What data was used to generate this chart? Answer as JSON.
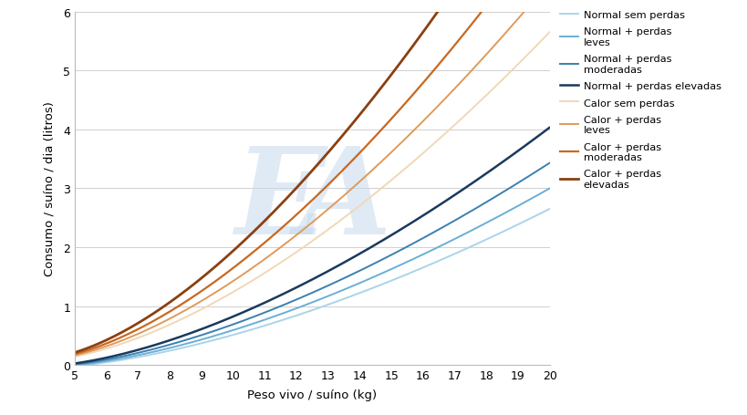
{
  "xlabel": "Peso vivo / suíno (kg)",
  "ylabel": "Consumo / suíno / dia (litros)",
  "xlim": [
    5,
    20
  ],
  "ylim": [
    0,
    6
  ],
  "xticks": [
    5,
    6,
    7,
    8,
    9,
    10,
    11,
    12,
    13,
    14,
    15,
    16,
    17,
    18,
    19,
    20
  ],
  "yticks": [
    0,
    1,
    2,
    3,
    4,
    5,
    6
  ],
  "series": [
    {
      "label": "Normal sem perdas",
      "color": "#aad4ea",
      "linewidth": 1.4,
      "a": 0.032,
      "b": 1.6,
      "c": -0.05
    },
    {
      "label": "Normal + perdas\nleves",
      "color": "#6bafd6",
      "linewidth": 1.4,
      "a": 0.036,
      "b": 1.6,
      "c": -0.04
    },
    {
      "label": "Normal + perdas\nmoderadas",
      "color": "#3b80b0",
      "linewidth": 1.4,
      "a": 0.041,
      "b": 1.6,
      "c": -0.03
    },
    {
      "label": "Normal + perdas elevadas",
      "color": "#1a3a5c",
      "linewidth": 1.8,
      "a": 0.048,
      "b": 1.6,
      "c": -0.02
    },
    {
      "label": "Calor sem perdas",
      "color": "#f0d8b8",
      "linewidth": 1.4,
      "a": 0.066,
      "b": 1.6,
      "c": 0.08
    },
    {
      "label": "Calor + perdas\nleves",
      "color": "#e09a5a",
      "linewidth": 1.4,
      "a": 0.076,
      "b": 1.6,
      "c": 0.09
    },
    {
      "label": "Calor + perdas\nmoderadas",
      "color": "#c86820",
      "linewidth": 1.6,
      "a": 0.088,
      "b": 1.6,
      "c": 0.1
    },
    {
      "label": "Calor + perdas\nelevadas",
      "color": "#8b4010",
      "linewidth": 2.0,
      "a": 0.104,
      "b": 1.6,
      "c": 0.11
    }
  ],
  "background_color": "#ffffff",
  "grid_color": "#d0d0d0",
  "watermark_color": "#c5d9ee",
  "watermark_alpha": 0.55
}
